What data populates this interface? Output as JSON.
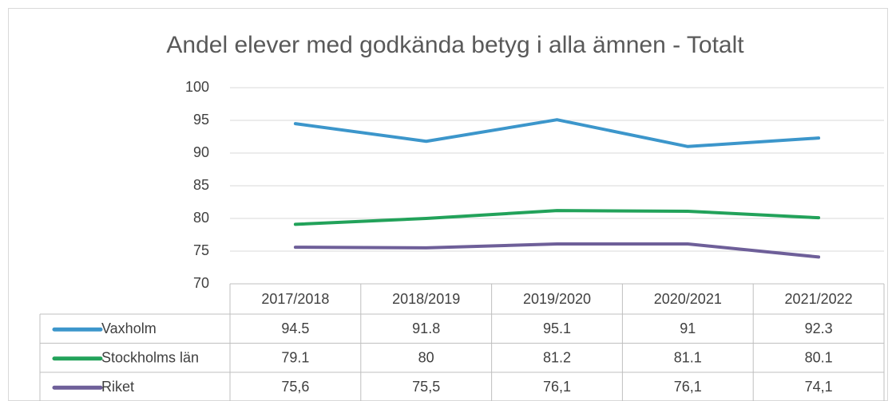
{
  "chart_data": {
    "type": "line",
    "title": "Andel elever med godkända betyg i alla ämnen - Totalt",
    "categories": [
      "2017/2018",
      "2018/2019",
      "2019/2020",
      "2020/2021",
      "2021/2022"
    ],
    "series": [
      {
        "name": "Vaxholm",
        "color": "#3c96cb",
        "values": [
          94.5,
          91.8,
          95.1,
          91,
          92.3
        ]
      },
      {
        "name": "Stockholms län",
        "color": "#22a25a",
        "values": [
          79.1,
          80,
          81.2,
          81.1,
          80.1
        ]
      },
      {
        "name": "Riket",
        "color": "#6e5f99",
        "values": [
          75.6,
          75.5,
          76.1,
          76.1,
          74.1
        ],
        "value_labels": [
          "75,6",
          "75,5",
          "76,1",
          "76,1",
          "74,1"
        ]
      }
    ],
    "ylim": [
      70,
      100
    ],
    "yticks": [
      70,
      75,
      80,
      85,
      90,
      95,
      100
    ],
    "grid": true,
    "data_table": true
  }
}
